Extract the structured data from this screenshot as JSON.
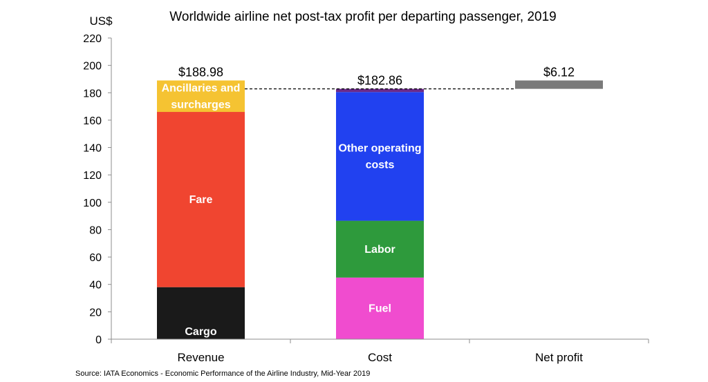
{
  "chart_data": {
    "type": "bar",
    "title": "Worldwide airline net post-tax profit per departing passenger, 2019",
    "unit_label": "US$",
    "ylim": [
      0,
      220
    ],
    "y_ticks": [
      0,
      20,
      40,
      60,
      80,
      100,
      120,
      140,
      160,
      180,
      200,
      220
    ],
    "grid": false,
    "categories": [
      "Revenue",
      "Cost",
      "Net profit"
    ],
    "stacks": [
      {
        "category": "Revenue",
        "total_label": "$188.98",
        "segments": [
          {
            "label": "Cargo",
            "from": 0,
            "to": 38,
            "color": "#1a1a1a"
          },
          {
            "label": "Fare",
            "from": 38,
            "to": 166,
            "color": "#f04530"
          },
          {
            "label": "Ancillaries and surcharges",
            "from": 166,
            "to": 188.98,
            "color": "#f5c332"
          }
        ]
      },
      {
        "category": "Cost",
        "total_label": "$182.86",
        "segments": [
          {
            "label": "Fuel",
            "from": 0,
            "to": 45,
            "color": "#f04ccf"
          },
          {
            "label": "Labor",
            "from": 45,
            "to": 86.5,
            "color": "#2e9a3c"
          },
          {
            "label": "Other operating costs",
            "from": 86.5,
            "to": 180.5,
            "color": "#2141f0"
          },
          {
            "label": "",
            "from": 180.5,
            "to": 182.86,
            "color": "#6b2a8a"
          }
        ]
      },
      {
        "category": "Net profit",
        "total_label": "$6.12",
        "segments": [
          {
            "label": "",
            "from": 182.86,
            "to": 188.98,
            "color": "#7a7a7a"
          }
        ]
      }
    ],
    "reference_line": {
      "value": 182.86,
      "style": "dashed"
    }
  },
  "source": "Source: IATA Economics - Economic Performance of the Airline Industry, Mid-Year 2019"
}
